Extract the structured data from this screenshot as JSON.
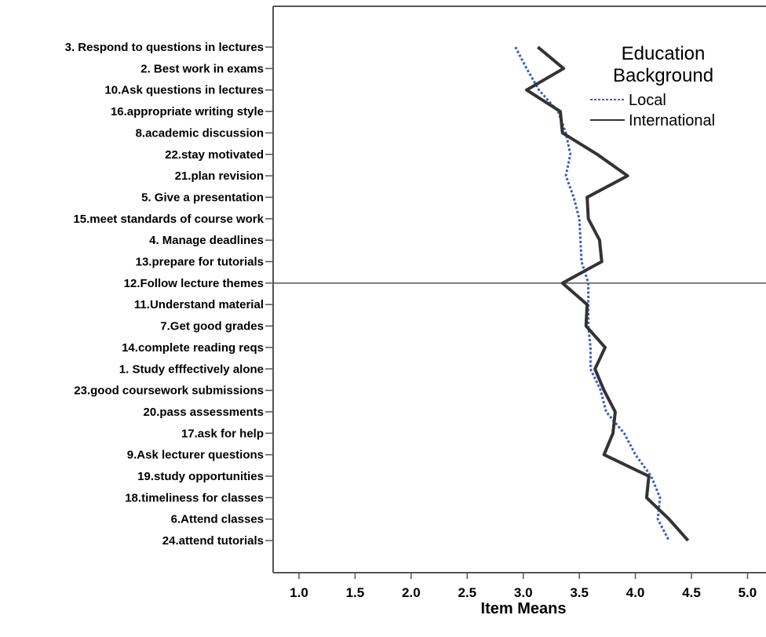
{
  "chart_data": {
    "type": "line",
    "xlabel": "Item Means",
    "xlim": [
      0.8,
      5.2
    ],
    "xticks": [
      1.0,
      1.5,
      2.0,
      2.5,
      3.0,
      3.5,
      4.0,
      4.5,
      5.0
    ],
    "xtick_labels": [
      "1.0",
      "1.5",
      "2.0",
      "2.5",
      "3.0",
      "3.5",
      "4.0",
      "4.5",
      "5.0"
    ],
    "categories": [
      "3. Respond to questions in lectures",
      "2. Best work in exams",
      "10.Ask questions in lectures",
      "16.appropriate writing style",
      "8.academic discussion",
      "22.stay motivated",
      "21.plan revision",
      "5. Give a presentation",
      "15.meet standards of course work",
      "4. Manage deadlines",
      "13.prepare for tutorials",
      "12.Follow lecture themes",
      "11.Understand material",
      "7.Get good grades",
      "14.complete reading reqs",
      "1. Study efffectively alone",
      "23.good coursework submissions",
      "20.pass assessments",
      "17.ask for help",
      "9.Ask lecturer questions",
      "19.study opportunities",
      "18.timeliness for classes",
      "6.Attend classes",
      "24.attend tutorials"
    ],
    "reference_line": {
      "category": "12.Follow lecture themes",
      "orientation": "horizontal"
    },
    "legend": {
      "title_lines": [
        "Education",
        "Background"
      ],
      "placement": "top-right"
    },
    "series": [
      {
        "name": "Local",
        "style": "dotted",
        "color": "#3b5fc0",
        "values": [
          2.93,
          3.03,
          3.14,
          3.31,
          3.38,
          3.42,
          3.38,
          3.45,
          3.5,
          3.51,
          3.52,
          3.58,
          3.58,
          3.58,
          3.6,
          3.6,
          3.69,
          3.74,
          3.9,
          4.0,
          4.14,
          4.22,
          4.2,
          4.3
        ]
      },
      {
        "name": "International",
        "style": "solid",
        "color": "#333333",
        "values": [
          3.13,
          3.36,
          3.03,
          3.33,
          3.35,
          3.66,
          3.93,
          3.57,
          3.58,
          3.68,
          3.7,
          3.35,
          3.57,
          3.56,
          3.73,
          3.64,
          3.72,
          3.82,
          3.8,
          3.72,
          4.12,
          4.1,
          4.3,
          4.47
        ]
      }
    ]
  }
}
